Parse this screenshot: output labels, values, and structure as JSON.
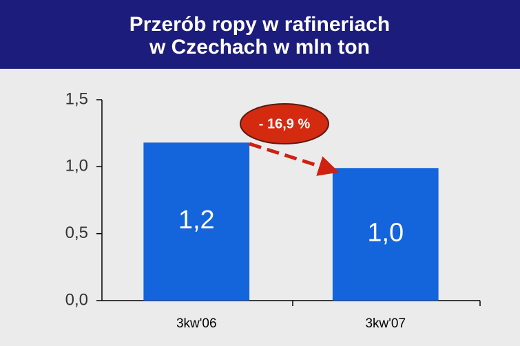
{
  "chart_data": {
    "type": "bar",
    "title": [
      "Przerób ropy w rafineriach",
      "w Czechach w mln ton"
    ],
    "categories": [
      "3kw'06",
      "3kw'07"
    ],
    "values": [
      1.18,
      0.99
    ],
    "value_labels": [
      "1,2",
      "1,0"
    ],
    "color": "#1464dc",
    "ylim": [
      0,
      1.5
    ],
    "yticks": [
      {
        "value": 0,
        "label": "0,0"
      },
      {
        "value": 0.5,
        "label": "0,5"
      },
      {
        "value": 1.0,
        "label": "1,0"
      },
      {
        "value": 1.5,
        "label": "1,5"
      }
    ],
    "annotation": "- 16,9 %"
  }
}
